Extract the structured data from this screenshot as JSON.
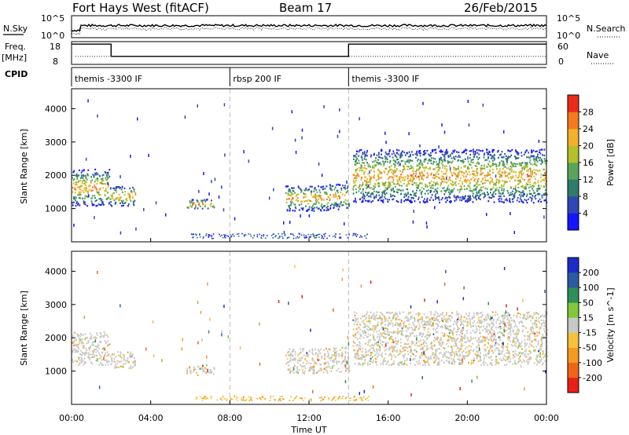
{
  "header": {
    "station": "Fort Hays West (fitACF)",
    "beam": "Beam 17",
    "date": "26/Feb/2015"
  },
  "strip": {
    "nsky_label": "N.Sky",
    "nsky_ticks": [
      "10^5",
      "10^0"
    ],
    "nsearch_label": "N.Search",
    "nsearch_ticks": [
      "10^5",
      "10^0"
    ],
    "freq_label": "Freq.",
    "freq_unit": "[MHz]",
    "freq_ticks": [
      "18",
      "8"
    ],
    "nave_label": "Nave",
    "nave_ticks": [
      "60",
      "0"
    ],
    "cpid_label": "CPID",
    "cpid_segments": [
      {
        "label": "themis -3300 IF",
        "start_hr": 0,
        "end_hr": 8
      },
      {
        "label": "rbsp 200 IF",
        "start_hr": 8,
        "end_hr": 14
      },
      {
        "label": "themis -3300 IF",
        "start_hr": 14,
        "end_hr": 24
      }
    ],
    "freq_steps": [
      [
        0,
        17.5
      ],
      [
        2,
        17.5
      ],
      [
        2,
        11
      ],
      [
        14,
        11
      ],
      [
        14,
        17.5
      ],
      [
        24,
        17.5
      ]
    ],
    "nave_level": 0.35
  },
  "chart_data": [
    {
      "type": "heatmap",
      "name": "power",
      "ylabel": "Slant Range [km]",
      "xlim": [
        0,
        24
      ],
      "ylim": [
        0,
        4600
      ],
      "yticks": [
        "1000",
        "2000",
        "3000",
        "4000"
      ],
      "colorbar_label": "Power [dB]",
      "colorbar_ticks": [
        "4",
        "8",
        "12",
        "16",
        "20",
        "24",
        "28"
      ],
      "colors": [
        "#1515ff",
        "#2f46b4",
        "#2e7c6a",
        "#5aa35a",
        "#b5c02a",
        "#f2b12a",
        "#f47a1e",
        "#ec2b1b"
      ],
      "regions": [
        {
          "t0": 0.0,
          "t1": 1.9,
          "r0": 1100,
          "r1": 2200
        },
        {
          "t0": 1.9,
          "t1": 3.2,
          "r0": 1100,
          "r1": 1700
        },
        {
          "t0": 5.8,
          "t1": 7.2,
          "r0": 1000,
          "r1": 1300
        },
        {
          "t0": 10.8,
          "t1": 13.0,
          "r0": 950,
          "r1": 1700
        },
        {
          "t0": 13.0,
          "t1": 14.0,
          "r0": 1000,
          "r1": 1750
        },
        {
          "t0": 14.2,
          "t1": 24.0,
          "r0": 1200,
          "r1": 2800
        }
      ]
    },
    {
      "type": "heatmap",
      "name": "velocity",
      "ylabel": "Slant Range [km]",
      "xlim": [
        0,
        24
      ],
      "ylim": [
        0,
        4600
      ],
      "yticks": [
        "1000",
        "2000",
        "3000",
        "4000"
      ],
      "colorbar_label": "Velocity [m s^-1]",
      "colorbar_ticks": [
        "200",
        "100",
        "50",
        "15",
        "-15",
        "-50",
        "-100",
        "-200"
      ],
      "colors": [
        "#1e2bc8",
        "#2d5aa0",
        "#2e8f5a",
        "#82c83a",
        "#c8c8c8",
        "#f5c23a",
        "#f59a1e",
        "#f06418",
        "#e82018"
      ],
      "regions": [
        {
          "t0": 0.0,
          "t1": 1.9,
          "r0": 1200,
          "r1": 2200
        },
        {
          "t0": 1.9,
          "t1": 3.2,
          "r0": 1100,
          "r1": 1600
        },
        {
          "t0": 5.8,
          "t1": 7.2,
          "r0": 900,
          "r1": 1200
        },
        {
          "t0": 10.8,
          "t1": 13.0,
          "r0": 950,
          "r1": 1700
        },
        {
          "t0": 13.0,
          "t1": 14.0,
          "r0": 1000,
          "r1": 1750
        },
        {
          "t0": 14.2,
          "t1": 24.0,
          "r0": 1200,
          "r1": 2800
        }
      ]
    }
  ],
  "xaxis": {
    "label": "Time UT",
    "ticks": [
      "00:00",
      "04:00",
      "08:00",
      "12:00",
      "16:00",
      "20:00",
      "00:00"
    ]
  }
}
